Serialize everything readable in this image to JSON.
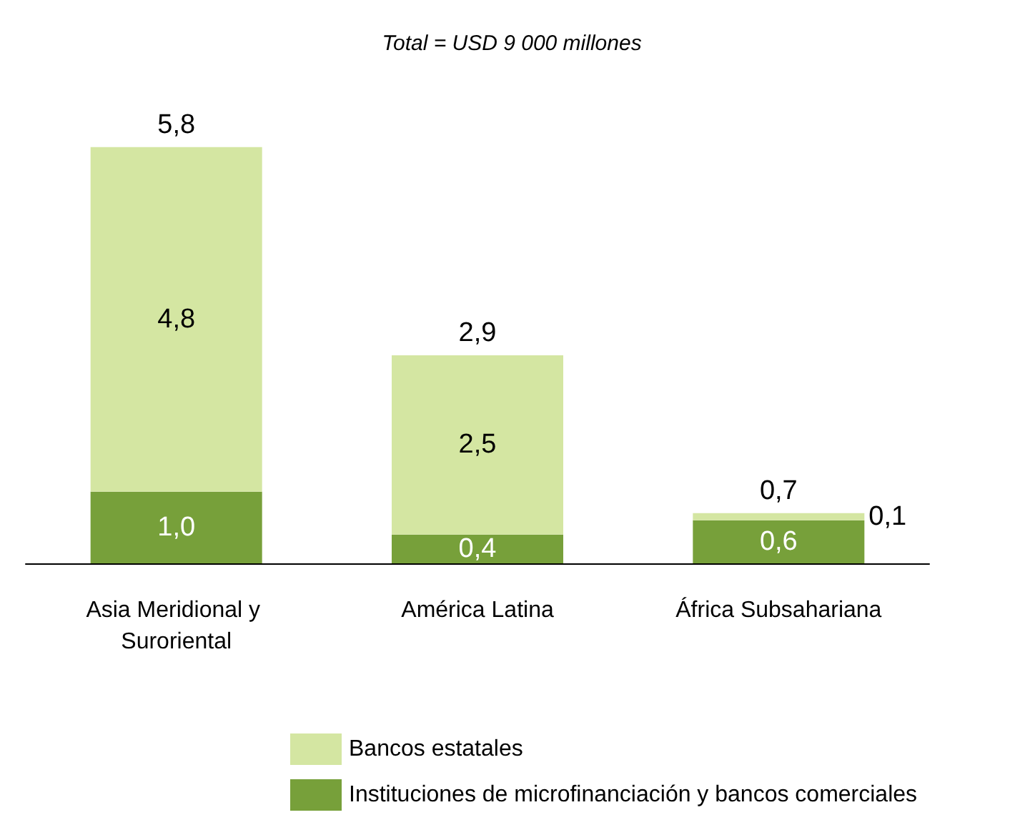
{
  "chart_data": {
    "type": "bar",
    "title": "Total = USD 9 000 millones",
    "categories": [
      "Asia Meridional y Suroriental",
      "América Latina",
      "África Subsahariana"
    ],
    "stacked": true,
    "legend": "bottom",
    "series": [
      {
        "name": "Instituciones de microfinanciación y bancos comerciales",
        "color": "#77a03a",
        "values": [
          1.0,
          0.4,
          0.6
        ],
        "value_labels": [
          "1,0",
          "0,4",
          "0,6"
        ]
      },
      {
        "name": "Bancos estatales",
        "color": "#d4e6a2",
        "values": [
          4.8,
          2.5,
          0.1
        ],
        "value_labels": [
          "4,8",
          "2,5",
          "0,1"
        ]
      }
    ],
    "totals": [
      "5,8",
      "2,9",
      "0,7"
    ]
  }
}
